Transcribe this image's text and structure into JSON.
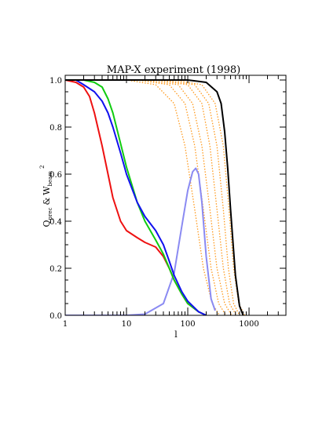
{
  "chart_data": {
    "type": "line",
    "title": "MAP-X experiment (1998)",
    "xlabel": "l",
    "ylabel": "Q_prec & W_beam^2",
    "ylabel_parts": {
      "q": "Q",
      "q_sub": "prec",
      "amp": "&",
      "w": "W",
      "w_sub": "beam",
      "w_sup": "2"
    },
    "xscale": "log",
    "xlim": [
      1,
      4000
    ],
    "ylim": [
      0,
      1.02
    ],
    "xticks": [
      {
        "value": 1,
        "label": "1"
      },
      {
        "value": 10,
        "label": "10"
      },
      {
        "value": 100,
        "label": "100"
      },
      {
        "value": 1000,
        "label": "1000"
      }
    ],
    "yticks": [
      {
        "value": 0.0,
        "label": "0.0"
      },
      {
        "value": 0.2,
        "label": "0.2"
      },
      {
        "value": 0.4,
        "label": "0.4"
      },
      {
        "value": 0.6,
        "label": "0.6"
      },
      {
        "value": 0.8,
        "label": "0.8"
      },
      {
        "value": 1.0,
        "label": "1.0"
      }
    ],
    "grid": false,
    "legend": "none",
    "series": [
      {
        "color": "#ff9a1e",
        "style": "dotted",
        "x": [
          1,
          10,
          30,
          60,
          90,
          130,
          180,
          250,
          330
        ],
        "y": [
          1.0,
          1.0,
          0.98,
          0.9,
          0.72,
          0.45,
          0.2,
          0.05,
          0.0
        ]
      },
      {
        "color": "#ff9a1e",
        "style": "dotted",
        "x": [
          1,
          15,
          50,
          90,
          130,
          180,
          240,
          320,
          420
        ],
        "y": [
          1.0,
          1.0,
          0.98,
          0.9,
          0.72,
          0.45,
          0.2,
          0.05,
          0.0
        ]
      },
      {
        "color": "#ff9a1e",
        "style": "dotted",
        "x": [
          1,
          20,
          70,
          120,
          170,
          230,
          300,
          400,
          520
        ],
        "y": [
          1.0,
          1.0,
          0.98,
          0.9,
          0.72,
          0.45,
          0.2,
          0.05,
          0.0
        ]
      },
      {
        "color": "#ff9a1e",
        "style": "dotted",
        "x": [
          1,
          30,
          100,
          170,
          230,
          300,
          380,
          480,
          620
        ],
        "y": [
          1.0,
          1.0,
          0.98,
          0.9,
          0.72,
          0.45,
          0.2,
          0.05,
          0.0
        ]
      },
      {
        "color": "#ff9a1e",
        "style": "dotted",
        "x": [
          1,
          40,
          130,
          220,
          300,
          380,
          460,
          560,
          700
        ],
        "y": [
          1.0,
          1.0,
          0.98,
          0.9,
          0.72,
          0.45,
          0.2,
          0.05,
          0.0
        ]
      },
      {
        "color": "#ff9a1e",
        "style": "dotted",
        "x": [
          1,
          60,
          170,
          280,
          380,
          470,
          560,
          680,
          850
        ],
        "y": [
          1.0,
          1.0,
          0.98,
          0.9,
          0.72,
          0.45,
          0.2,
          0.05,
          0.0
        ]
      },
      {
        "color": "#8a8af2",
        "style": "solid",
        "x": [
          1,
          10,
          20,
          40,
          60,
          80,
          100,
          120,
          135,
          150,
          170,
          200,
          240,
          280
        ],
        "y": [
          0.0,
          0.0,
          0.005,
          0.05,
          0.18,
          0.38,
          0.53,
          0.61,
          0.625,
          0.6,
          0.48,
          0.25,
          0.07,
          0.02
        ]
      },
      {
        "color": "#ee1111",
        "style": "solid",
        "x": [
          1,
          1.5,
          2,
          2.5,
          3,
          4,
          5,
          6,
          8,
          10,
          15,
          20,
          30,
          40,
          50,
          60,
          80,
          100,
          150,
          200
        ],
        "y": [
          1.0,
          0.99,
          0.97,
          0.93,
          0.86,
          0.72,
          0.6,
          0.5,
          0.4,
          0.36,
          0.33,
          0.31,
          0.29,
          0.25,
          0.2,
          0.15,
          0.09,
          0.05,
          0.015,
          0.0
        ]
      },
      {
        "color": "#11cc11",
        "style": "solid",
        "x": [
          1,
          2,
          3,
          4,
          5,
          6,
          8,
          10,
          15,
          20,
          30,
          40,
          50,
          60,
          80,
          100,
          150,
          200
        ],
        "y": [
          1.0,
          1.0,
          0.99,
          0.97,
          0.92,
          0.86,
          0.73,
          0.63,
          0.48,
          0.4,
          0.32,
          0.26,
          0.2,
          0.15,
          0.09,
          0.05,
          0.015,
          0.0
        ]
      },
      {
        "color": "#1111ee",
        "style": "solid",
        "x": [
          1,
          1.5,
          2,
          3,
          4,
          5,
          6,
          8,
          10,
          15,
          20,
          30,
          40,
          50,
          60,
          80,
          100,
          150,
          200
        ],
        "y": [
          1.0,
          1.0,
          0.98,
          0.95,
          0.91,
          0.86,
          0.8,
          0.69,
          0.6,
          0.48,
          0.42,
          0.36,
          0.3,
          0.23,
          0.17,
          0.1,
          0.06,
          0.015,
          0.0
        ]
      },
      {
        "color": "#000000",
        "style": "solid",
        "x": [
          1,
          100,
          200,
          300,
          350,
          400,
          450,
          500,
          550,
          600,
          700,
          800
        ],
        "y": [
          1.0,
          1.0,
          0.99,
          0.95,
          0.9,
          0.78,
          0.62,
          0.45,
          0.3,
          0.17,
          0.04,
          0.0
        ]
      }
    ]
  }
}
